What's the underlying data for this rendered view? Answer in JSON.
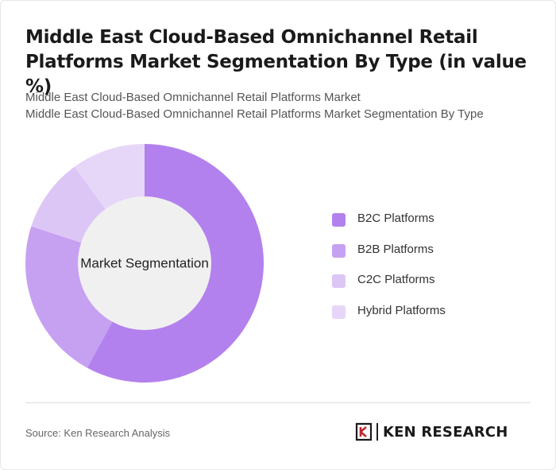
{
  "title": "Middle East Cloud-Based Omnichannel Retail Platforms Market Segmentation By Type (in value %)",
  "subtitle_line1": "Middle East Cloud-Based Omnichannel Retail Platforms Market",
  "subtitle_line2": "Middle East Cloud-Based Omnichannel Retail Platforms Market Segmentation By Type",
  "source": "Source: Ken Research Analysis",
  "logo_text": "KEN RESEARCH",
  "chart_data": {
    "type": "pie",
    "center_label": "Market Segmentation",
    "categories": [
      "B2C Platforms",
      "B2B Platforms",
      "C2C Platforms",
      "Hybrid Platforms"
    ],
    "values": [
      58,
      22,
      10,
      10
    ],
    "colors": [
      "#b381ed",
      "#c6a0f1",
      "#dcc6f6",
      "#e6d7f8"
    ],
    "legend_position": "right"
  }
}
